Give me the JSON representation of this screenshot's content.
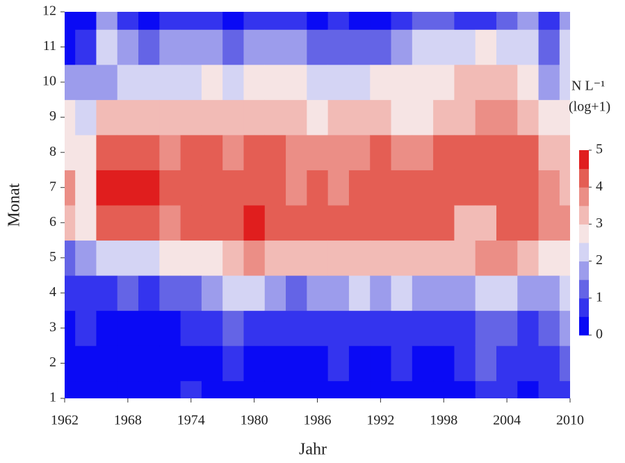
{
  "chart_data": {
    "type": "heatmap",
    "x_label": "Jahr",
    "y_label": "Monat",
    "colorbar_title": [
      "N L⁻¹",
      "(log+1)"
    ],
    "x": [
      1962,
      1964,
      1966,
      1968,
      1970,
      1972,
      1974,
      1976,
      1978,
      1980,
      1982,
      1984,
      1986,
      1988,
      1990,
      1992,
      1994,
      1996,
      1998,
      2000,
      2002,
      2004,
      2006,
      2008,
      2010
    ],
    "y": [
      1,
      2,
      3,
      4,
      5,
      6,
      7,
      8,
      9,
      10,
      11,
      12
    ],
    "z": [
      [
        0.3,
        0.3,
        0.4,
        0.6,
        1.2,
        3.2,
        3.6,
        2.8,
        2.6,
        1.8,
        0.4,
        0.2
      ],
      [
        0.3,
        0.3,
        0.5,
        0.8,
        1.5,
        2.8,
        2.5,
        2.6,
        2.4,
        1.8,
        0.5,
        0.3
      ],
      [
        0.2,
        0.2,
        0.3,
        0.8,
        2.2,
        4.1,
        4.5,
        4.2,
        3.2,
        1.8,
        2.0,
        1.5
      ],
      [
        0.2,
        0.2,
        0.3,
        1.0,
        2.4,
        4.3,
        4.6,
        4.3,
        3.1,
        2.0,
        1.6,
        0.8
      ],
      [
        0.2,
        0.2,
        0.3,
        0.8,
        2.4,
        4.0,
        4.6,
        4.0,
        3.0,
        2.2,
        1.2,
        0.4
      ],
      [
        0.2,
        0.3,
        0.4,
        1.0,
        2.5,
        3.9,
        4.2,
        3.8,
        3.0,
        2.4,
        1.5,
        0.6
      ],
      [
        0.5,
        0.4,
        0.8,
        1.2,
        2.8,
        4.1,
        4.4,
        4.0,
        3.2,
        2.4,
        1.8,
        0.8
      ],
      [
        0.4,
        0.4,
        0.7,
        1.5,
        2.9,
        4.0,
        4.3,
        4.0,
        3.3,
        2.6,
        1.7,
        0.6
      ],
      [
        0.3,
        0.5,
        1.0,
        2.0,
        3.3,
        4.2,
        4.2,
        3.9,
        3.2,
        2.4,
        1.4,
        0.4
      ],
      [
        0.2,
        0.2,
        0.8,
        2.2,
        3.6,
        4.5,
        4.4,
        4.1,
        3.4,
        2.6,
        1.6,
        0.6
      ],
      [
        0.2,
        0.2,
        0.6,
        1.8,
        3.4,
        4.0,
        4.3,
        4.0,
        3.1,
        2.5,
        1.6,
        0.6
      ],
      [
        0.3,
        0.3,
        0.6,
        1.4,
        3.2,
        4.1,
        3.6,
        3.6,
        3.2,
        2.8,
        1.5,
        0.5
      ],
      [
        0.3,
        0.3,
        0.5,
        1.5,
        3.2,
        4.1,
        4.0,
        3.6,
        2.9,
        2.4,
        1.2,
        0.4
      ],
      [
        0.4,
        0.5,
        0.8,
        1.6,
        3.0,
        4.1,
        3.9,
        3.7,
        3.0,
        2.0,
        1.2,
        0.6
      ],
      [
        0.3,
        0.4,
        0.8,
        2.0,
        3.4,
        4.2,
        4.2,
        3.7,
        3.1,
        2.4,
        1.4,
        0.3
      ],
      [
        0.3,
        0.4,
        0.8,
        1.8,
        3.2,
        4.2,
        4.2,
        4.0,
        3.1,
        2.6,
        1.4,
        0.4
      ],
      [
        0.4,
        0.5,
        0.8,
        2.0,
        3.3,
        4.1,
        4.3,
        3.9,
        2.6,
        2.5,
        1.8,
        0.8
      ],
      [
        0.3,
        0.4,
        0.6,
        1.6,
        3.3,
        4.0,
        4.1,
        3.6,
        2.6,
        2.6,
        2.0,
        1.0
      ],
      [
        0.2,
        0.3,
        0.6,
        1.8,
        3.4,
        4.3,
        4.4,
        4.0,
        3.0,
        2.8,
        2.2,
        1.2
      ],
      [
        0.4,
        0.5,
        0.9,
        1.8,
        3.4,
        3.4,
        4.2,
        4.2,
        3.3,
        3.0,
        2.4,
        0.8
      ],
      [
        0.8,
        1.0,
        1.4,
        2.4,
        3.6,
        3.4,
        4.1,
        4.3,
        3.6,
        3.3,
        2.6,
        0.5
      ],
      [
        0.5,
        0.6,
        1.0,
        2.2,
        3.5,
        4.0,
        4.4,
        4.2,
        3.6,
        3.2,
        2.2,
        1.4
      ],
      [
        0.4,
        0.5,
        0.9,
        1.8,
        3.2,
        4.0,
        4.4,
        4.2,
        3.3,
        2.6,
        2.2,
        1.8
      ],
      [
        0.5,
        0.6,
        1.0,
        1.6,
        2.8,
        3.6,
        3.8,
        3.3,
        2.6,
        1.8,
        1.2,
        0.6
      ],
      [
        0.8,
        1.2,
        1.8,
        2.4,
        2.8,
        3.6,
        3.4,
        3.0,
        2.6,
        2.4,
        2.2,
        1.8
      ]
    ],
    "xlim": [
      1962,
      2010
    ],
    "xticks": [
      1962,
      1968,
      1974,
      1980,
      1986,
      1992,
      1998,
      2004,
      2010
    ],
    "ylim": [
      1,
      12
    ],
    "yticks": [
      1,
      2,
      3,
      4,
      5,
      6,
      7,
      8,
      9,
      10,
      11,
      12
    ],
    "zlim": [
      0,
      5
    ],
    "zticks": [
      0,
      1,
      2,
      3,
      4,
      5
    ],
    "levels": [
      0,
      0.5,
      1,
      1.5,
      2,
      2.5,
      3,
      3.5,
      4,
      4.5,
      5
    ],
    "colors": [
      "#0a0af5",
      "#3434ee",
      "#6464e6",
      "#9c9cec",
      "#d4d4f4",
      "#f6e4e4",
      "#f2bbb6",
      "#eb8e86",
      "#e45e54",
      "#e01e1e"
    ]
  }
}
